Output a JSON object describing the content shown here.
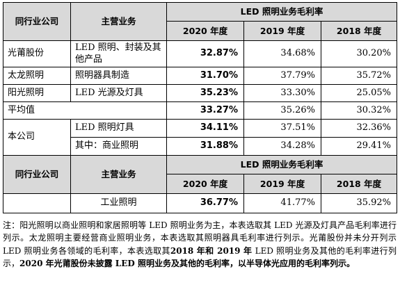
{
  "table1": {
    "head": {
      "col1": "同行业公司",
      "col2": "主营业务",
      "group": "LED 照明业务毛利率",
      "y2020": "2020 年度",
      "y2019": "2019 年度",
      "y2018": "2018 年度"
    },
    "rows": [
      {
        "company": "光莆股份",
        "business": "LED 照明、封装及其他产品",
        "v2020": "32.87%",
        "v2019": "34.68%",
        "v2018": "30.20%"
      },
      {
        "company": "太龙照明",
        "business": "照明器具制造",
        "v2020": "31.70%",
        "v2019": "37.79%",
        "v2018": "35.72%"
      },
      {
        "company": "阳光照明",
        "business": "LED 光源及灯具",
        "v2020": "35.23%",
        "v2019": "33.30%",
        "v2018": "25.05%"
      }
    ],
    "average": {
      "label": "平均值",
      "v2020": "33.27%",
      "v2019": "35.26%",
      "v2018": "30.32%"
    },
    "self": {
      "company": "本公司",
      "rows": [
        {
          "business": "LED 照明灯具",
          "v2020": "34.11%",
          "v2019": "37.51%",
          "v2018": "32.36%"
        },
        {
          "business": "其中：商业照明",
          "v2020": "31.88%",
          "v2019": "34.28%",
          "v2018": "29.41%"
        }
      ]
    }
  },
  "table2": {
    "head": {
      "col1": "同行业公司",
      "col2": "主营业务",
      "group": "LED 照明业务毛利率",
      "y2020": "2020 年度",
      "y2019": "2019 年度",
      "y2018": "2018 年度"
    },
    "row": {
      "business": "工业照明",
      "v2020": "36.77%",
      "v2019": "41.77%",
      "v2018": "35.92%"
    }
  },
  "note": {
    "part1": "注：阳光照明以商业照明和家居照明等 LED 照明业务为主，本表选取其 LED 光源及灯具产品毛利率进行列示。太龙照明主要经营商业照明业务，本表选取其照明器具毛利率进行列示。光莆股份并未分开列示 LED 照明业务各领域的毛利率，本表选取其",
    "bold1": "2018 年和 2019 年",
    "part2": " LED 照明业务及其他的毛利率进行列示，",
    "bold2": "2020 年光莆股份未披露 LED 照明业务及其他的毛利率，以半导体光应用的毛利率列示。"
  }
}
